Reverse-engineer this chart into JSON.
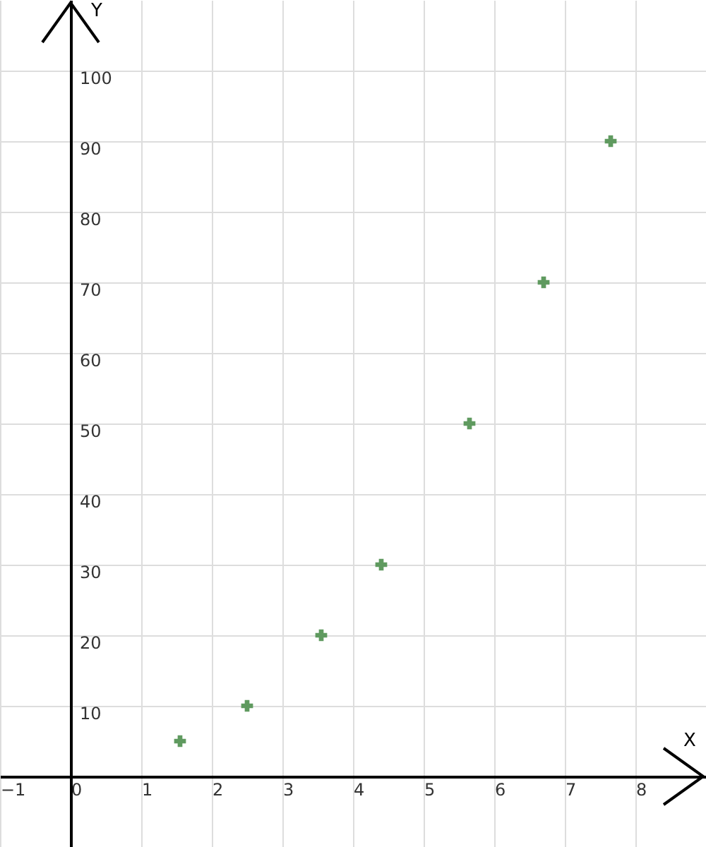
{
  "chart_data": {
    "type": "scatter",
    "xlabel": "X",
    "ylabel": "Y",
    "x": [
      1.55,
      2.5,
      3.55,
      4.4,
      5.65,
      6.7,
      7.65
    ],
    "values": [
      5,
      10,
      20,
      30,
      50,
      70,
      90
    ],
    "color": "#5f9a5f",
    "marker": "cross",
    "grid": true,
    "xlim": [
      -1,
      9
    ],
    "ylim": [
      -10,
      110
    ],
    "xticks": [
      -1,
      0,
      1,
      2,
      3,
      4,
      5,
      6,
      7,
      8
    ],
    "yticks": [
      10,
      20,
      30,
      40,
      50,
      60,
      70,
      80,
      90,
      100
    ]
  }
}
